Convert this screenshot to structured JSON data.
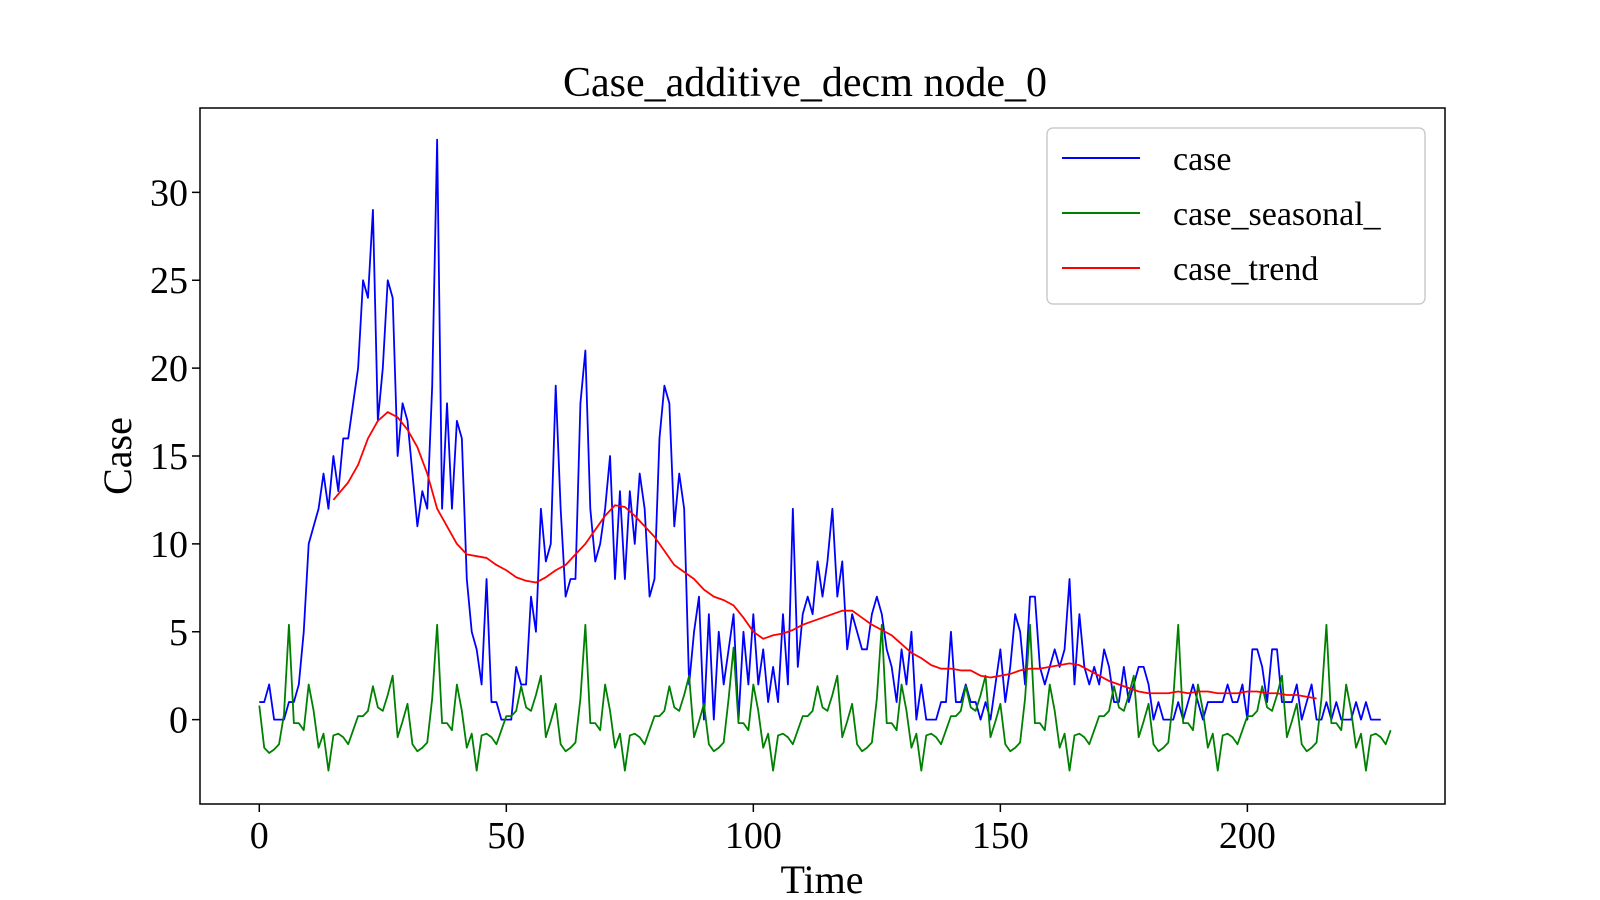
{
  "chart_data": {
    "type": "line",
    "title": "Case_additive_decm node_0",
    "xlabel": "Time",
    "ylabel": "Case",
    "xlim": [
      -12,
      240
    ],
    "ylim": [
      -4.8,
      34.8
    ],
    "xticks": [
      0,
      50,
      100,
      150,
      200
    ],
    "yticks": [
      0,
      5,
      10,
      15,
      20,
      25,
      30
    ],
    "legend": "top-right",
    "grid": false,
    "series": [
      {
        "name": "case",
        "color": "#0000ff",
        "x_start": 0,
        "values": [
          1,
          1,
          2,
          0,
          0,
          0,
          1,
          1,
          2,
          5,
          10,
          11,
          12,
          14,
          12,
          15,
          13,
          16,
          16,
          18,
          20,
          25,
          24,
          29,
          17,
          20,
          25,
          24,
          15,
          18,
          17,
          14,
          11,
          13,
          12,
          19,
          33,
          12,
          18,
          12,
          17,
          16,
          8,
          5,
          4,
          2,
          8,
          1,
          1,
          0,
          0,
          0,
          3,
          2,
          2,
          7,
          5,
          12,
          9,
          10,
          19,
          12,
          7,
          8,
          8,
          18,
          21,
          12,
          9,
          10,
          12,
          15,
          8,
          13,
          8,
          13,
          10,
          14,
          12,
          7,
          8,
          16,
          19,
          18,
          11,
          14,
          12,
          2,
          5,
          7,
          0,
          6,
          0,
          5,
          2,
          4,
          6,
          0,
          5,
          2,
          6,
          2,
          4,
          1,
          3,
          1,
          6,
          2,
          12,
          3,
          6,
          7,
          6,
          9,
          7,
          9,
          12,
          7,
          9,
          4,
          6,
          5,
          4,
          4,
          6,
          7,
          6,
          4,
          3,
          1,
          4,
          2,
          5,
          0,
          2,
          0,
          0,
          0,
          1,
          1,
          5,
          1,
          1,
          2,
          1,
          1,
          0,
          1,
          0,
          2,
          4,
          1,
          3,
          6,
          5,
          2,
          7,
          7,
          3,
          2,
          3,
          4,
          3,
          4,
          8,
          2,
          6,
          3,
          2,
          3,
          2,
          4,
          3,
          1,
          1,
          3,
          1,
          2,
          3,
          3,
          2,
          0,
          1,
          0,
          0,
          0,
          1,
          0,
          1,
          2,
          1,
          0,
          1,
          1,
          1,
          1,
          2,
          1,
          1,
          2,
          0,
          4,
          4,
          3,
          1,
          4,
          4,
          1,
          1,
          1,
          2,
          0,
          1,
          2,
          0,
          0,
          1,
          0,
          1,
          0,
          0,
          0,
          1,
          0,
          1,
          0,
          0,
          0
        ]
      },
      {
        "name": "case_seasonal_",
        "color": "#008000",
        "x_start": 0,
        "values": [
          0.8,
          -1.6,
          -1.9,
          -1.7,
          -1.4,
          0.3,
          5.4,
          -0.2,
          -0.2,
          -0.6,
          2,
          0.5,
          -1.6,
          -0.8,
          -2.9,
          -0.9,
          -0.8,
          -1,
          -1.4,
          -0.6,
          0.2,
          0.2,
          0.5,
          1.9,
          0.7,
          0.5,
          1.4,
          2.5,
          -1,
          -0.1,
          0.9,
          -1.4,
          -1.8,
          -1.6,
          -1.3,
          1.2,
          5.4,
          -0.2,
          -0.2,
          -0.6,
          2,
          0.5,
          -1.6,
          -0.8,
          -2.9,
          -0.9,
          -0.8,
          -1,
          -1.4,
          -0.6,
          0.2,
          0.2,
          0.5,
          1.9,
          0.7,
          0.5,
          1.4,
          2.5,
          -1,
          -0.1,
          0.9,
          -1.4,
          -1.8,
          -1.6,
          -1.3,
          1.2,
          5.4,
          -0.2,
          -0.2,
          -0.6,
          2,
          0.5,
          -1.6,
          -0.8,
          -2.9,
          -0.9,
          -0.8,
          -1,
          -1.4,
          -0.6,
          0.2,
          0.2,
          0.5,
          1.9,
          0.7,
          0.5,
          1.4,
          2.5,
          -1,
          -0.1,
          0.9,
          -1.4,
          -1.8,
          -1.6,
          -1.3,
          1.2,
          4.1,
          -0.2,
          -0.2,
          -0.6,
          2,
          0.5,
          -1.6,
          -0.8,
          -2.9,
          -0.9,
          -0.8,
          -1,
          -1.4,
          -0.6,
          0.2,
          0.2,
          0.5,
          1.9,
          0.7,
          0.5,
          1.4,
          2.5,
          -1,
          -0.1,
          0.9,
          -1.4,
          -1.8,
          -1.6,
          -1.3,
          1.2,
          5.4,
          -0.2,
          -0.2,
          -0.6,
          2,
          0.5,
          -1.6,
          -0.8,
          -2.9,
          -0.9,
          -0.8,
          -1,
          -1.4,
          -0.6,
          0.2,
          0.2,
          0.5,
          1.9,
          0.7,
          0.5,
          1.4,
          2.5,
          -1,
          -0.1,
          0.9,
          -1.4,
          -1.8,
          -1.6,
          -1.3,
          1.2,
          5.4,
          -0.2,
          -0.2,
          -0.6,
          2,
          0.5,
          -1.6,
          -0.8,
          -2.9,
          -0.9,
          -0.8,
          -1,
          -1.4,
          -0.6,
          0.2,
          0.2,
          0.5,
          1.9,
          0.7,
          0.5,
          1.4,
          2.5,
          -1,
          -0.1,
          0.9,
          -1.4,
          -1.8,
          -1.6,
          -1.3,
          1.2,
          5.4,
          -0.2,
          -0.2,
          -0.6,
          2,
          0.5,
          -1.6,
          -0.8,
          -2.9,
          -0.9,
          -0.8,
          -1,
          -1.4,
          -0.6,
          0.2,
          0.2,
          0.5,
          1.9,
          0.7,
          0.5,
          1.4,
          2.5,
          -1,
          -0.1,
          0.9,
          -1.4,
          -1.8,
          -1.6,
          -1.3,
          1.2,
          5.4,
          -0.2,
          -0.2,
          -0.6,
          2,
          0.5,
          -1.6,
          -0.8,
          -2.9,
          -0.9,
          -0.8,
          -1,
          -1.4,
          -0.6
        ]
      },
      {
        "name": "case_trend",
        "color": "#ff0000",
        "x": [
          15,
          18,
          20,
          22,
          24,
          26,
          28,
          30,
          32,
          34,
          36,
          38,
          40,
          42,
          44,
          46,
          48,
          50,
          52,
          54,
          56,
          58,
          60,
          62,
          64,
          66,
          68,
          70,
          72,
          74,
          76,
          78,
          80,
          82,
          84,
          86,
          88,
          90,
          92,
          94,
          96,
          98,
          100,
          102,
          104,
          106,
          108,
          110,
          112,
          114,
          116,
          118,
          120,
          122,
          124,
          126,
          128,
          130,
          132,
          134,
          136,
          138,
          140,
          142,
          144,
          146,
          148,
          150,
          152,
          154,
          156,
          158,
          160,
          162,
          164,
          166,
          168,
          170,
          172,
          174,
          176,
          178,
          180,
          182,
          184,
          186,
          188,
          190,
          192,
          194,
          196,
          198,
          200,
          202,
          204,
          206,
          208,
          210,
          212,
          214
        ],
        "values": [
          12.5,
          13.5,
          14.5,
          16,
          17,
          17.5,
          17.2,
          16.5,
          15.5,
          14,
          12,
          11,
          10,
          9.4,
          9.3,
          9.2,
          8.8,
          8.5,
          8.1,
          7.9,
          7.8,
          8.1,
          8.5,
          8.8,
          9.4,
          10,
          10.8,
          11.6,
          12.2,
          12.1,
          11.6,
          11,
          10.4,
          9.6,
          8.8,
          8.4,
          8,
          7.4,
          7,
          6.8,
          6.5,
          5.8,
          5,
          4.6,
          4.8,
          4.9,
          5.1,
          5.4,
          5.6,
          5.8,
          6,
          6.2,
          6.2,
          5.8,
          5.4,
          5.1,
          4.8,
          4.3,
          3.8,
          3.5,
          3.1,
          2.9,
          2.9,
          2.8,
          2.8,
          2.5,
          2.4,
          2.5,
          2.6,
          2.8,
          2.9,
          2.9,
          3,
          3.1,
          3.2,
          3.1,
          2.8,
          2.5,
          2.2,
          2,
          1.8,
          1.6,
          1.5,
          1.5,
          1.5,
          1.6,
          1.5,
          1.6,
          1.6,
          1.5,
          1.5,
          1.5,
          1.6,
          1.6,
          1.5,
          1.5,
          1.4,
          1.4,
          1.3,
          1.2
        ]
      }
    ]
  }
}
